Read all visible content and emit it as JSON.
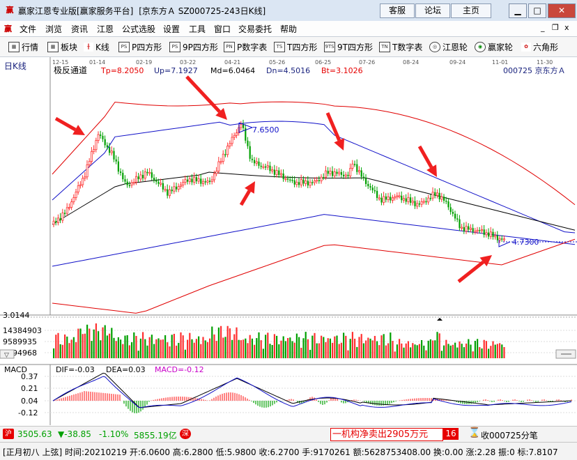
{
  "window": {
    "app_title": "赢家江恩专业版[赢家服务平台]",
    "doc_title": "[京东方Ａ   SZ000725-243日K线]",
    "logo_text": "赢",
    "top_buttons": [
      "客服",
      "论坛",
      "主页"
    ],
    "controls": [
      "▁",
      "□",
      "✕"
    ]
  },
  "menu": {
    "items": [
      "文件",
      "浏览",
      "资讯",
      "江恩",
      "公式选股",
      "设置",
      "工具",
      "窗口",
      "交易委托",
      "帮助"
    ],
    "mdi_controls": [
      "_",
      "❐",
      "x"
    ]
  },
  "toolbar": {
    "items": [
      {
        "icon": "grid-icon",
        "glyph": "▦",
        "label": "行情"
      },
      {
        "icon": "block-icon",
        "glyph": "▦",
        "label": "板块"
      },
      {
        "icon": "candle-icon",
        "glyph": "╫",
        "label": "K线"
      },
      {
        "icon": "p-square-icon",
        "glyph": "PS",
        "label": "P四方形"
      },
      {
        "icon": "p9-square-icon",
        "glyph": "PS",
        "label": "9P四方形"
      },
      {
        "icon": "pn-table-icon",
        "glyph": "PN",
        "label": "P数字表"
      },
      {
        "icon": "t-square-icon",
        "glyph": "TS",
        "label": "T四方形"
      },
      {
        "icon": "t9-square-icon",
        "glyph": "9TS",
        "label": "9T四方形"
      },
      {
        "icon": "tn-table-icon",
        "glyph": "TN",
        "label": "T数字表"
      },
      {
        "icon": "gann-wheel-icon",
        "glyph": "◎",
        "label": "江恩轮"
      },
      {
        "icon": "winner-wheel-icon",
        "glyph": "◉",
        "label": "赢家轮"
      },
      {
        "icon": "hexagon-icon",
        "glyph": "✿",
        "label": "六角形"
      }
    ]
  },
  "chart": {
    "period_label": "日K线",
    "indicator_name": "极反通道",
    "tp_label": "Tp=8.2050",
    "up_label": "Up=7.1927",
    "md_label": "Md=6.0464",
    "dn_label": "Dn=4.5016",
    "bt_label": "Bt=3.1026",
    "stock_label": "000725  京东方Ａ",
    "date_ticks": [
      "12-15",
      "01-14",
      "02-19",
      "03-22",
      "04-21",
      "05-26",
      "06-25",
      "07-26",
      "08-24",
      "09-24",
      "11-01",
      "11-30"
    ],
    "high_marker": "7.6500",
    "low_marker": "4.7300",
    "volume_axis": [
      "3.0144",
      "14384903",
      "9589935",
      "4794968"
    ],
    "macd_label": "MACD",
    "dif_label": "DIF=-0.03",
    "dea_label": "DEA=0.03",
    "macd_value_label": "MACD=-0.12",
    "macd_axis": [
      "0.37",
      "0.21",
      "0.04",
      "-0.12"
    ],
    "colors": {
      "up": "#ff3030",
      "down": "#00a000",
      "channel_outer": "#e00000",
      "channel_inner": "#1010c8",
      "mid": "#000000",
      "arrow": "#f02020"
    }
  },
  "chart_data": {
    "type": "candlestick",
    "title": "京东方Ａ 000725 日K线",
    "price_range": [
      3.0144,
      8.205
    ],
    "high_label": 7.65,
    "low_label": 4.73,
    "channel": {
      "tp": 8.205,
      "up": 7.1927,
      "md": 6.0464,
      "dn": 4.5016,
      "bt": 3.1026
    },
    "macd": {
      "dif": -0.03,
      "dea": 0.03,
      "macd": -0.12
    },
    "last_bar": {
      "date": "20210219",
      "open": 6.06,
      "high": 6.28,
      "low": 5.98,
      "close": 6.27
    }
  },
  "status": {
    "index_value": "3505.63",
    "index_change": "▼-38.85",
    "index_pct": "-1.10%",
    "index_amount": "5855.19亿",
    "news_text": "一机构净卖出2905万元",
    "page_num": "16",
    "quote_text": "收000725分笔",
    "bar_info": "[正月初八  上弦]  时间:20210219 开:6.0600 高:6.2800 低:5.9800 收:6.2700 手:9170261 额:5628753408.00 换:0.00 涨:2.28 振:0 标:7.8107"
  }
}
